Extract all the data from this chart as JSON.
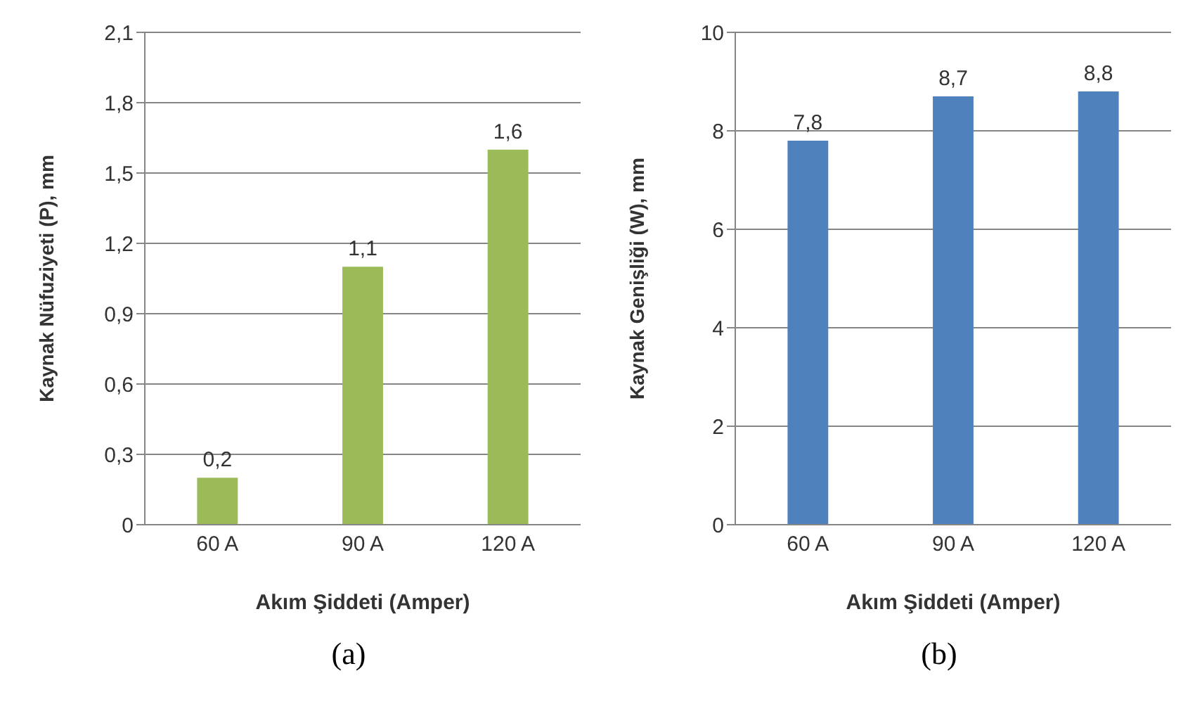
{
  "chart_data": [
    {
      "type": "bar",
      "categories": [
        "60 A",
        "90 A",
        "120 A"
      ],
      "values": [
        0.2,
        1.1,
        1.6
      ],
      "value_labels": [
        "0,2",
        "1,1",
        "1,6"
      ],
      "color": "#9bbb59",
      "xlabel": "Akım Şiddeti (Amper)",
      "ylabel": "Kaynak Nüfuziyeti (P), mm",
      "ylim": [
        0,
        2.1
      ],
      "yticks": [
        0,
        {
          "value": 0.3,
          "label": "0,3"
        },
        {
          "value": 0.6,
          "label": "0,6"
        },
        {
          "value": 0.9,
          "label": "0,9"
        },
        {
          "value": 1.2,
          "label": "1,2"
        },
        {
          "value": 1.5,
          "label": "1,5"
        },
        {
          "value": 1.8,
          "label": "1,8"
        },
        {
          "value": 2.1,
          "label": "2,1"
        }
      ],
      "grid": "y",
      "annotations": [
        "(a)"
      ]
    },
    {
      "type": "bar",
      "categories": [
        "60 A",
        "90 A",
        "120 A"
      ],
      "values": [
        7.8,
        8.7,
        8.8
      ],
      "value_labels": [
        "7,8",
        "8,7",
        "8,8"
      ],
      "color": "#4f81bd",
      "xlabel": "Akım Şiddeti (Amper)",
      "ylabel": "Kaynak Genişliği (W), mm",
      "ylim": [
        0,
        10
      ],
      "yticks": [
        0,
        2,
        4,
        6,
        8,
        10
      ],
      "grid": "y",
      "annotations": [
        "(b)"
      ]
    }
  ]
}
